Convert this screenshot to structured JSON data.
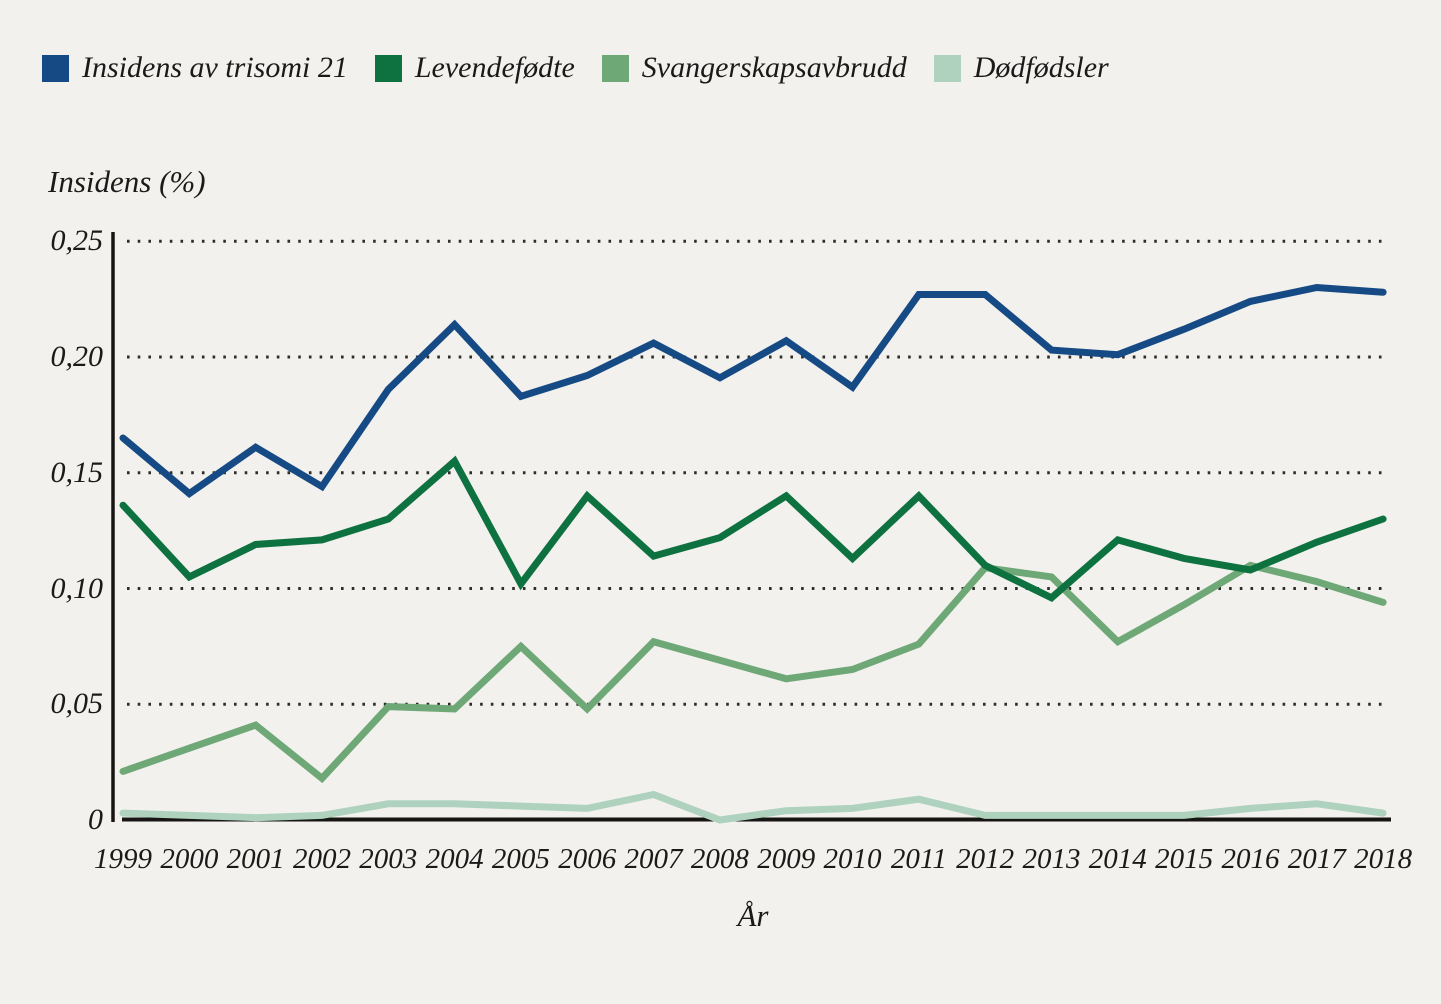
{
  "legend": {
    "items": [
      {
        "label": "Insidens av trisomi 21",
        "color": "#164a85"
      },
      {
        "label": "Levendefødte",
        "color": "#0e7240"
      },
      {
        "label": "Svangerskapsavbrudd",
        "color": "#6fa877"
      },
      {
        "label": "Dødfødsler",
        "color": "#aed2bd"
      }
    ]
  },
  "chart_data": {
    "type": "line",
    "title": "",
    "ylabel": "Insidens (%)",
    "xlabel": "År",
    "x_labels": [
      "1999",
      "2000",
      "2001",
      "2002",
      "2003",
      "2004",
      "2005",
      "2006",
      "2007",
      "2008",
      "2009",
      "2010",
      "2011",
      "2012",
      "2013",
      "2014",
      "2015",
      "2016",
      "2017",
      "2018"
    ],
    "ylim": [
      0,
      0.25
    ],
    "grid": "horizontal-dotted",
    "legend_position": "top-left",
    "decimal_separator": ",",
    "yticks": [
      {
        "value": 0.25,
        "label": "0,25"
      },
      {
        "value": 0.2,
        "label": "0,20"
      },
      {
        "value": 0.15,
        "label": "0,15"
      },
      {
        "value": 0.1,
        "label": "0,10"
      },
      {
        "value": 0.05,
        "label": "0,05"
      },
      {
        "value": 0,
        "label": "0"
      }
    ],
    "series": [
      {
        "name": "Dødfødsler",
        "color": "#aed2bd",
        "values": [
          0.003,
          0.002,
          0.001,
          0.002,
          0.007,
          0.007,
          0.006,
          0.005,
          0.011,
          0.0,
          0.004,
          0.005,
          0.009,
          0.002,
          0.002,
          0.002,
          0.002,
          0.005,
          0.007,
          0.003
        ]
      },
      {
        "name": "Svangerskapsavbrudd",
        "color": "#6fa877",
        "values": [
          0.021,
          0.031,
          0.041,
          0.018,
          0.049,
          0.048,
          0.075,
          0.048,
          0.077,
          0.069,
          0.061,
          0.065,
          0.076,
          0.109,
          0.105,
          0.077,
          0.093,
          0.11,
          0.103,
          0.094
        ]
      },
      {
        "name": "Levendefødte",
        "color": "#0e7240",
        "values": [
          0.136,
          0.105,
          0.119,
          0.121,
          0.13,
          0.155,
          0.102,
          0.14,
          0.114,
          0.122,
          0.14,
          0.113,
          0.14,
          0.11,
          0.096,
          0.121,
          0.113,
          0.108,
          0.12,
          0.13
        ]
      },
      {
        "name": "Insidens av trisomi 21",
        "color": "#164a85",
        "values": [
          0.165,
          0.141,
          0.161,
          0.144,
          0.186,
          0.214,
          0.183,
          0.192,
          0.206,
          0.191,
          0.207,
          0.187,
          0.227,
          0.227,
          0.203,
          0.201,
          0.212,
          0.224,
          0.23,
          0.228
        ]
      }
    ]
  }
}
